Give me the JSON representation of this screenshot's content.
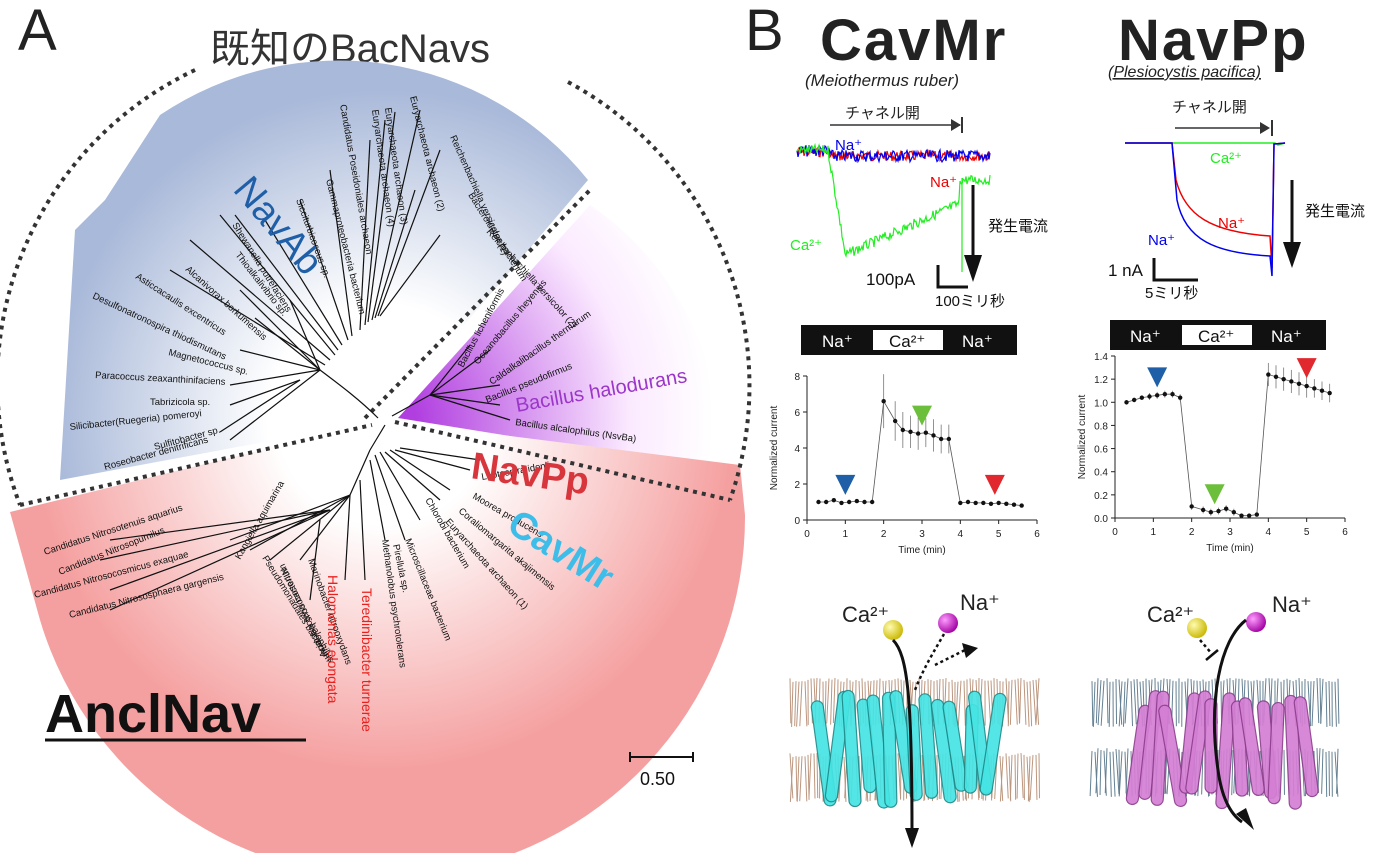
{
  "panel_a": {
    "letter": "A",
    "title": "既知のBacNavs",
    "clade_navab": "NavAb",
    "clade_bacillus": "Bacillus halodurans",
    "clade_navpp": "NavPp",
    "clade_cavmr": "CavMr",
    "ancinav": "AnclNav",
    "scale_bar": "0.50",
    "leaves_blue": [
      "Roseobacter denitrificans",
      "Sulfitobacter sp.",
      "Silicibacter(Ruegeria) pomeroyi",
      "Tabrizicola sp.",
      "Paracoccus zeaxanthinifaciens",
      "Magnetococcus sp.",
      "Desulfonatronospira thiodismutans",
      "Asticcacaulis excentricus",
      "Alcanivorax borkumensis",
      "Shewanella putrefaciens",
      "Thioalkalivibrio sp.",
      "Sicciturbicoccus sp.",
      "Gammaproteobacteria bacterium",
      "Candidatus Poseidoniales archaeon",
      "Euryarchaeota archaeon (4)",
      "Euryarchaeota archaeon (3)",
      "Euryarchaeota archaeon (2)",
      "Reichenbachiella versicolor (1)",
      "Bacteroidetes bacterium",
      "Reichenbachiella versicolor (2)"
    ],
    "leaves_purple": [
      "Bacillus licheniformis",
      "Oceanobacillus iheyensis",
      "Caldalkalibacillus thermarum",
      "Bacillus pseudofirmus",
      "Bacillus alcalophilus (NsvBa)"
    ],
    "leaves_red": [
      "Leptospira idonii",
      "Moorea producens",
      "Coraliomargarita akajimensis",
      "Euryarchaeota archaeon (1)",
      "Chlorobi bacterium",
      "Microscillaceae bacterium",
      "Pirellula sp.",
      "Methanolobus psychrotolerans",
      "Acidobacteria bacterium",
      "Marinobacter nitrooxydans",
      "Nitrosococcus halophilus",
      "Pseudomonadales bacterium",
      "Kangiella aquimarina",
      "Candidatus Nitrosotenuis aquarius",
      "Candidatus Nitrosopumilus",
      "Candidatus Nitrosocosmicus exaquae",
      "Candidatus Nitrososphaera gargensis"
    ],
    "leaves_red_highlight": [
      "Halomonas elongata",
      "Teredinibacter turnerae"
    ]
  },
  "panel_b": {
    "letter": "B",
    "cavmr": {
      "name": "CavMr",
      "species": "(Meiothermus ruber)",
      "channel_open": "チャネル開",
      "current_label": "発生電流",
      "trace_na_top": "Na⁺",
      "trace_na_mid": "Na⁺",
      "trace_ca": "Ca²⁺",
      "scale_y": "100pA",
      "scale_x": "100ミリ秒",
      "solution_bar": [
        "Na⁺",
        "Ca²⁺",
        "Na⁺"
      ],
      "ion_ca": "Ca²⁺",
      "ion_na": "Na⁺"
    },
    "navpp": {
      "name": "NavPp",
      "species": "(Plesiocystis pacifica)",
      "channel_open": "チャネル開",
      "current_label": "発生電流",
      "trace_ca": "Ca²⁺",
      "trace_na_red": "Na⁺",
      "trace_na_blue": "Na⁺",
      "scale_y": "1 nA",
      "scale_x": "5ミリ秒",
      "solution_bar": [
        "Na⁺",
        "Ca²⁺",
        "Na⁺"
      ],
      "ion_ca": "Ca²⁺",
      "ion_na": "Na⁺"
    }
  },
  "chart_data": [
    {
      "type": "line",
      "xlabel": "Time (min)",
      "ylabel": "Normalized current",
      "xlim": [
        0,
        6
      ],
      "ylim": [
        0,
        8
      ],
      "xticks": [
        "0",
        "1",
        "2",
        "3",
        "4",
        "5",
        "6"
      ],
      "yticks": [
        "0",
        "2",
        "4",
        "6",
        "8"
      ],
      "x": [
        0.3,
        0.5,
        0.7,
        0.9,
        1.1,
        1.3,
        1.5,
        1.7,
        2.0,
        2.3,
        2.5,
        2.7,
        2.9,
        3.1,
        3.3,
        3.5,
        3.7,
        4.0,
        4.2,
        4.4,
        4.6,
        4.8,
        5.0,
        5.2,
        5.4,
        5.6
      ],
      "y": [
        1.0,
        1.0,
        1.1,
        0.95,
        1.0,
        1.05,
        1.0,
        1.0,
        6.6,
        5.5,
        5.0,
        4.9,
        4.8,
        4.85,
        4.7,
        4.5,
        4.5,
        0.95,
        1.0,
        0.95,
        0.95,
        0.9,
        0.95,
        0.9,
        0.85,
        0.8
      ],
      "err": [
        0.1,
        0.1,
        0.1,
        0.1,
        0.1,
        0.1,
        0.1,
        0.1,
        1.5,
        1.1,
        1.0,
        0.9,
        0.9,
        0.8,
        0.9,
        0.8,
        0.8,
        0.08,
        0.08,
        0.08,
        0.08,
        0.08,
        0.08,
        0.08,
        0.08,
        0.08
      ],
      "markers": [
        {
          "x": 1.0,
          "color": "#1f5fa8"
        },
        {
          "x": 3.0,
          "color": "#6cbf3b"
        },
        {
          "x": 4.9,
          "color": "#e0282e"
        }
      ]
    },
    {
      "type": "line",
      "xlabel": "Time (min)",
      "ylabel": "Normalized current",
      "xlim": [
        0,
        6
      ],
      "ylim": [
        0,
        1.4
      ],
      "xticks": [
        "0",
        "1",
        "2",
        "3",
        "4",
        "5",
        "6"
      ],
      "yticks": [
        "0.0",
        "0.2",
        "0.4",
        "0.6",
        "0.8",
        "1.0",
        "1.2",
        "1.4"
      ],
      "x": [
        0.3,
        0.5,
        0.7,
        0.9,
        1.1,
        1.3,
        1.5,
        1.7,
        2.0,
        2.3,
        2.5,
        2.7,
        2.9,
        3.1,
        3.3,
        3.5,
        3.7,
        4.0,
        4.2,
        4.4,
        4.6,
        4.8,
        5.0,
        5.2,
        5.4,
        5.6
      ],
      "y": [
        1.0,
        1.02,
        1.04,
        1.05,
        1.06,
        1.07,
        1.07,
        1.04,
        0.1,
        0.07,
        0.05,
        0.06,
        0.08,
        0.05,
        0.02,
        0.02,
        0.03,
        1.24,
        1.22,
        1.2,
        1.18,
        1.16,
        1.14,
        1.12,
        1.1,
        1.08
      ],
      "err": [
        0.02,
        0.02,
        0.02,
        0.03,
        0.03,
        0.03,
        0.03,
        0.03,
        0.03,
        0.03,
        0.03,
        0.03,
        0.03,
        0.03,
        0.02,
        0.02,
        0.02,
        0.1,
        0.1,
        0.1,
        0.1,
        0.1,
        0.1,
        0.08,
        0.08,
        0.08
      ],
      "markers": [
        {
          "x": 1.1,
          "color": "#1f5fa8"
        },
        {
          "x": 2.6,
          "color": "#6cbf3b"
        },
        {
          "x": 5.0,
          "color": "#e0282e"
        }
      ]
    }
  ],
  "colors": {
    "navab_blue": "#1f5fa8",
    "bacillus_purple": "#9b36c9",
    "navpp_red": "#d7363c",
    "cavmr_cyan": "#3fbde9",
    "trace_blue": "#0000ee",
    "trace_red": "#ee0000",
    "trace_green": "#22ee22",
    "ca_yellow": "#e6d400",
    "na_magenta": "#cc11cc",
    "protein_cyan": "#46e4e4",
    "protein_pink": "#d47fd4"
  }
}
